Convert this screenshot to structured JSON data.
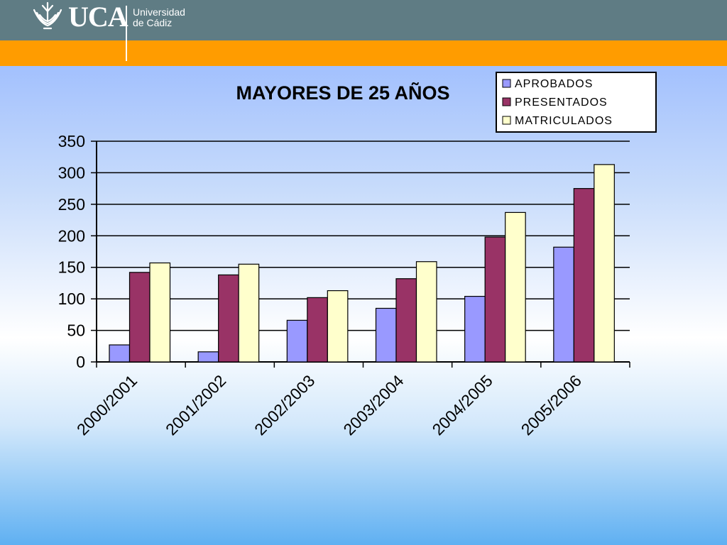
{
  "header": {
    "logo_text": "UCA",
    "university_line1": "Universidad",
    "university_line2": "de Cádiz",
    "header_color": "#5f7c84",
    "band_color": "#ff9c00"
  },
  "chart_data": {
    "type": "bar",
    "title": "MAYORES DE 25 AÑOS",
    "xlabel": "",
    "ylabel": "",
    "categories": [
      "2000/2001",
      "2001/2002",
      "2002/2003",
      "2003/2004",
      "2004/2005",
      "2005/2006"
    ],
    "series": [
      {
        "name": "APROBADOS",
        "color": "#9999ff",
        "values": [
          27,
          16,
          66,
          85,
          104,
          182
        ]
      },
      {
        "name": "PRESENTADOS",
        "color": "#993366",
        "values": [
          142,
          138,
          102,
          132,
          198,
          275
        ]
      },
      {
        "name": "MATRICULADOS",
        "color": "#ffffcc",
        "values": [
          157,
          155,
          113,
          159,
          237,
          313
        ]
      }
    ],
    "ylim": [
      0,
      350
    ],
    "yticks": [
      "0",
      "50",
      "100",
      "150",
      "200",
      "250",
      "300",
      "350"
    ],
    "grid": true,
    "legend_position": "top-right"
  }
}
